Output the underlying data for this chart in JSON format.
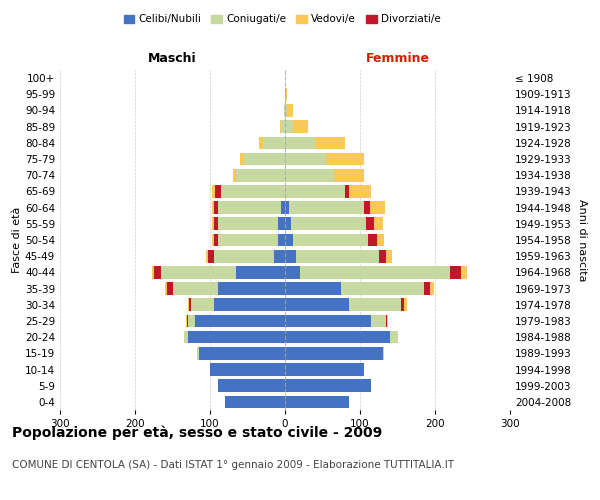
{
  "age_groups": [
    "0-4",
    "5-9",
    "10-14",
    "15-19",
    "20-24",
    "25-29",
    "30-34",
    "35-39",
    "40-44",
    "45-49",
    "50-54",
    "55-59",
    "60-64",
    "65-69",
    "70-74",
    "75-79",
    "80-84",
    "85-89",
    "90-94",
    "95-99",
    "100+"
  ],
  "birth_years": [
    "2004-2008",
    "1999-2003",
    "1994-1998",
    "1989-1993",
    "1984-1988",
    "1979-1983",
    "1974-1978",
    "1969-1973",
    "1964-1968",
    "1959-1963",
    "1954-1958",
    "1949-1953",
    "1944-1948",
    "1939-1943",
    "1934-1938",
    "1929-1933",
    "1924-1928",
    "1919-1923",
    "1914-1918",
    "1909-1913",
    "≤ 1908"
  ],
  "male": {
    "celibi": [
      80,
      90,
      100,
      115,
      130,
      120,
      95,
      90,
      65,
      15,
      10,
      10,
      5,
      0,
      0,
      0,
      0,
      0,
      0,
      0,
      0
    ],
    "coniugati": [
      0,
      0,
      0,
      2,
      5,
      10,
      30,
      60,
      100,
      80,
      80,
      80,
      85,
      85,
      65,
      55,
      30,
      5,
      2,
      0,
      0
    ],
    "vedovi": [
      0,
      0,
      0,
      0,
      0,
      1,
      1,
      2,
      2,
      2,
      2,
      2,
      3,
      5,
      5,
      5,
      5,
      2,
      0,
      0,
      0
    ],
    "divorziati": [
      0,
      0,
      0,
      0,
      0,
      1,
      3,
      8,
      10,
      8,
      5,
      5,
      5,
      8,
      0,
      0,
      0,
      0,
      0,
      0,
      0
    ]
  },
  "female": {
    "nubili": [
      85,
      115,
      105,
      130,
      140,
      115,
      85,
      75,
      20,
      15,
      10,
      8,
      5,
      0,
      0,
      0,
      0,
      0,
      0,
      0,
      0
    ],
    "coniugate": [
      0,
      0,
      0,
      2,
      10,
      20,
      70,
      110,
      200,
      110,
      100,
      100,
      100,
      80,
      65,
      55,
      40,
      10,
      2,
      0,
      0
    ],
    "vedove": [
      0,
      0,
      0,
      0,
      0,
      1,
      3,
      5,
      8,
      8,
      10,
      12,
      20,
      30,
      40,
      50,
      40,
      20,
      8,
      2,
      0
    ],
    "divorziate": [
      0,
      0,
      0,
      0,
      0,
      1,
      4,
      8,
      15,
      10,
      12,
      10,
      8,
      5,
      0,
      0,
      0,
      0,
      0,
      0,
      0
    ]
  },
  "colors": {
    "celibi": "#4472C4",
    "coniugati": "#C5D9A0",
    "vedovi": "#FAC858",
    "divorziati": "#C0172B"
  },
  "xlim": 300,
  "title": "Popolazione per età, sesso e stato civile - 2009",
  "subtitle": "COMUNE DI CENTOLA (SA) - Dati ISTAT 1° gennaio 2009 - Elaborazione TUTTITALIA.IT",
  "ylabel_left": "Fasce di età",
  "ylabel_right": "Anni di nascita",
  "xlabel_left": "Maschi",
  "xlabel_right": "Femmine",
  "legend_labels": [
    "Celibi/Nubili",
    "Coniugati/e",
    "Vedovi/e",
    "Divorziati/e"
  ],
  "background_color": "#FFFFFF",
  "title_fontsize": 10,
  "subtitle_fontsize": 7.5,
  "tick_fontsize": 7.5,
  "label_fontsize": 8
}
